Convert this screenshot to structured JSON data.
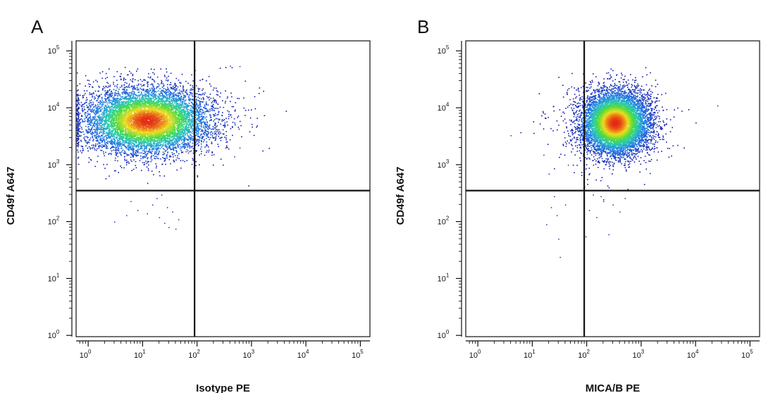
{
  "chart_data": [
    {
      "type": "scatter",
      "panel_label": "A",
      "xlabel": "Isotype PE",
      "ylabel": "CD49f A647",
      "x_scale": "log",
      "y_scale": "log",
      "xlim": [
        0.6,
        150000
      ],
      "ylim": [
        0.95,
        150000
      ],
      "x_ticks": [
        1,
        10,
        100,
        1000,
        10000,
        100000
      ],
      "y_ticks": [
        1,
        10,
        100,
        1000,
        10000,
        100000
      ],
      "x_tick_labels": [
        "10^0",
        "10^1",
        "10^2",
        "10^3",
        "10^4",
        "10^5"
      ],
      "y_tick_labels": [
        "10^0",
        "10^1",
        "10^2",
        "10^3",
        "10^4",
        "10^5"
      ],
      "quadrant_gate": {
        "x": 90,
        "y": 350
      },
      "population": {
        "center": {
          "x": 12,
          "y": 6000
        },
        "spread_log10": {
          "x": 0.55,
          "y": 0.28
        },
        "events": 9000,
        "color_scale": "density (blue → green → yellow → red)"
      },
      "sparse_events": [
        {
          "x": 400,
          "y": 55000
        },
        {
          "x": 600,
          "y": 54000
        },
        {
          "x": 130,
          "y": 8500
        },
        {
          "x": 170,
          "y": 9000
        },
        {
          "x": 220,
          "y": 13000
        },
        {
          "x": 350,
          "y": 15000
        },
        {
          "x": 420,
          "y": 7000
        },
        {
          "x": 300,
          "y": 5000
        },
        {
          "x": 250,
          "y": 3500
        },
        {
          "x": 180,
          "y": 2400
        },
        {
          "x": 330,
          "y": 2000
        },
        {
          "x": 600,
          "y": 2000
        },
        {
          "x": 480,
          "y": 1400
        },
        {
          "x": 150,
          "y": 1800
        },
        {
          "x": 120,
          "y": 4200
        },
        {
          "x": 8,
          "y": 160
        },
        {
          "x": 12,
          "y": 140
        },
        {
          "x": 20,
          "y": 120
        },
        {
          "x": 25,
          "y": 95
        },
        {
          "x": 30,
          "y": 80
        },
        {
          "x": 40,
          "y": 75
        },
        {
          "x": 3,
          "y": 100
        },
        {
          "x": 5,
          "y": 130
        },
        {
          "x": 15,
          "y": 200
        },
        {
          "x": 35,
          "y": 150
        },
        {
          "x": 45,
          "y": 110
        },
        {
          "x": 6,
          "y": 230
        },
        {
          "x": 18,
          "y": 260
        },
        {
          "x": 28,
          "y": 180
        },
        {
          "x": 22,
          "y": 300
        }
      ]
    },
    {
      "type": "scatter",
      "panel_label": "B",
      "xlabel": "MICA/B PE",
      "ylabel": "CD49f A647",
      "x_scale": "log",
      "y_scale": "log",
      "xlim": [
        0.6,
        150000
      ],
      "ylim": [
        0.95,
        150000
      ],
      "x_ticks": [
        1,
        10,
        100,
        1000,
        10000,
        100000
      ],
      "y_ticks": [
        1,
        10,
        100,
        1000,
        10000,
        100000
      ],
      "x_tick_labels": [
        "10^0",
        "10^1",
        "10^2",
        "10^3",
        "10^4",
        "10^5"
      ],
      "y_tick_labels": [
        "10^0",
        "10^1",
        "10^2",
        "10^3",
        "10^4",
        "10^5"
      ],
      "quadrant_gate": {
        "x": 90,
        "y": 350
      },
      "population": {
        "center": {
          "x": 330,
          "y": 5500
        },
        "spread_log10": {
          "x": 0.3,
          "y": 0.27
        },
        "events": 9000,
        "color_scale": "density (blue → green → yellow → red)"
      },
      "sparse_events": [
        {
          "x": 4,
          "y": 3300
        },
        {
          "x": 16,
          "y": 1500
        },
        {
          "x": 25,
          "y": 280
        },
        {
          "x": 22,
          "y": 180
        },
        {
          "x": 28,
          "y": 130
        },
        {
          "x": 30,
          "y": 50
        },
        {
          "x": 32,
          "y": 24
        },
        {
          "x": 18,
          "y": 90
        },
        {
          "x": 40,
          "y": 200
        },
        {
          "x": 60,
          "y": 2500
        },
        {
          "x": 50,
          "y": 4000
        },
        {
          "x": 70,
          "y": 8000
        },
        {
          "x": 25000,
          "y": 11000
        },
        {
          "x": 20,
          "y": 700
        },
        {
          "x": 45,
          "y": 1000
        },
        {
          "x": 110,
          "y": 160
        },
        {
          "x": 150,
          "y": 120
        },
        {
          "x": 200,
          "y": 230
        },
        {
          "x": 250,
          "y": 60
        },
        {
          "x": 300,
          "y": 200
        },
        {
          "x": 400,
          "y": 150
        },
        {
          "x": 180,
          "y": 280
        },
        {
          "x": 95,
          "y": 55
        },
        {
          "x": 130,
          "y": 300
        },
        {
          "x": 500,
          "y": 260
        }
      ]
    }
  ]
}
